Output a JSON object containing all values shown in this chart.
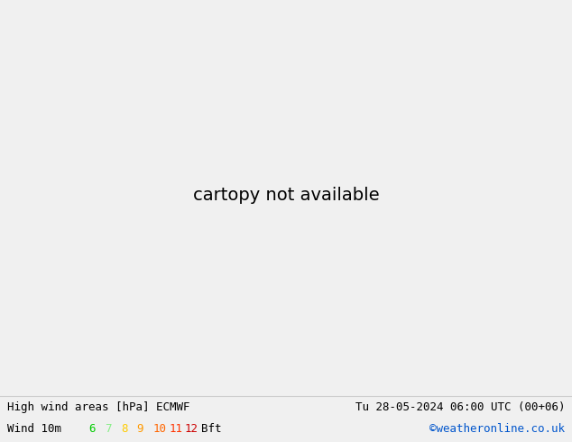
{
  "title_left": "High wind areas [hPa] ECMWF",
  "title_right": "Tu 28-05-2024 06:00 UTC (00+06)",
  "legend_label": "Wind 10m",
  "legend_values": [
    "6",
    "7",
    "8",
    "9",
    "10",
    "11",
    "12"
  ],
  "legend_colors": [
    "#00cc00",
    "#88ee88",
    "#ffcc00",
    "#ff9900",
    "#ff6600",
    "#ff3300",
    "#cc0000"
  ],
  "legend_suffix": "Bft",
  "credit": "©weatheronline.co.uk",
  "bg_color": "#d8d8d8",
  "land_color": "#aaddaa",
  "border_color": "#888888",
  "sea_color": "#d8d8d8",
  "isobar_blue": "#2244ff",
  "isobar_black": "#000000",
  "isobar_red": "#cc2200",
  "wind_green": "#b8e8b8",
  "footer_bg": "#f0f0f0",
  "footer_fg": "#000000",
  "credit_color": "#0055cc",
  "extent": [
    -25,
    30,
    42,
    72
  ]
}
